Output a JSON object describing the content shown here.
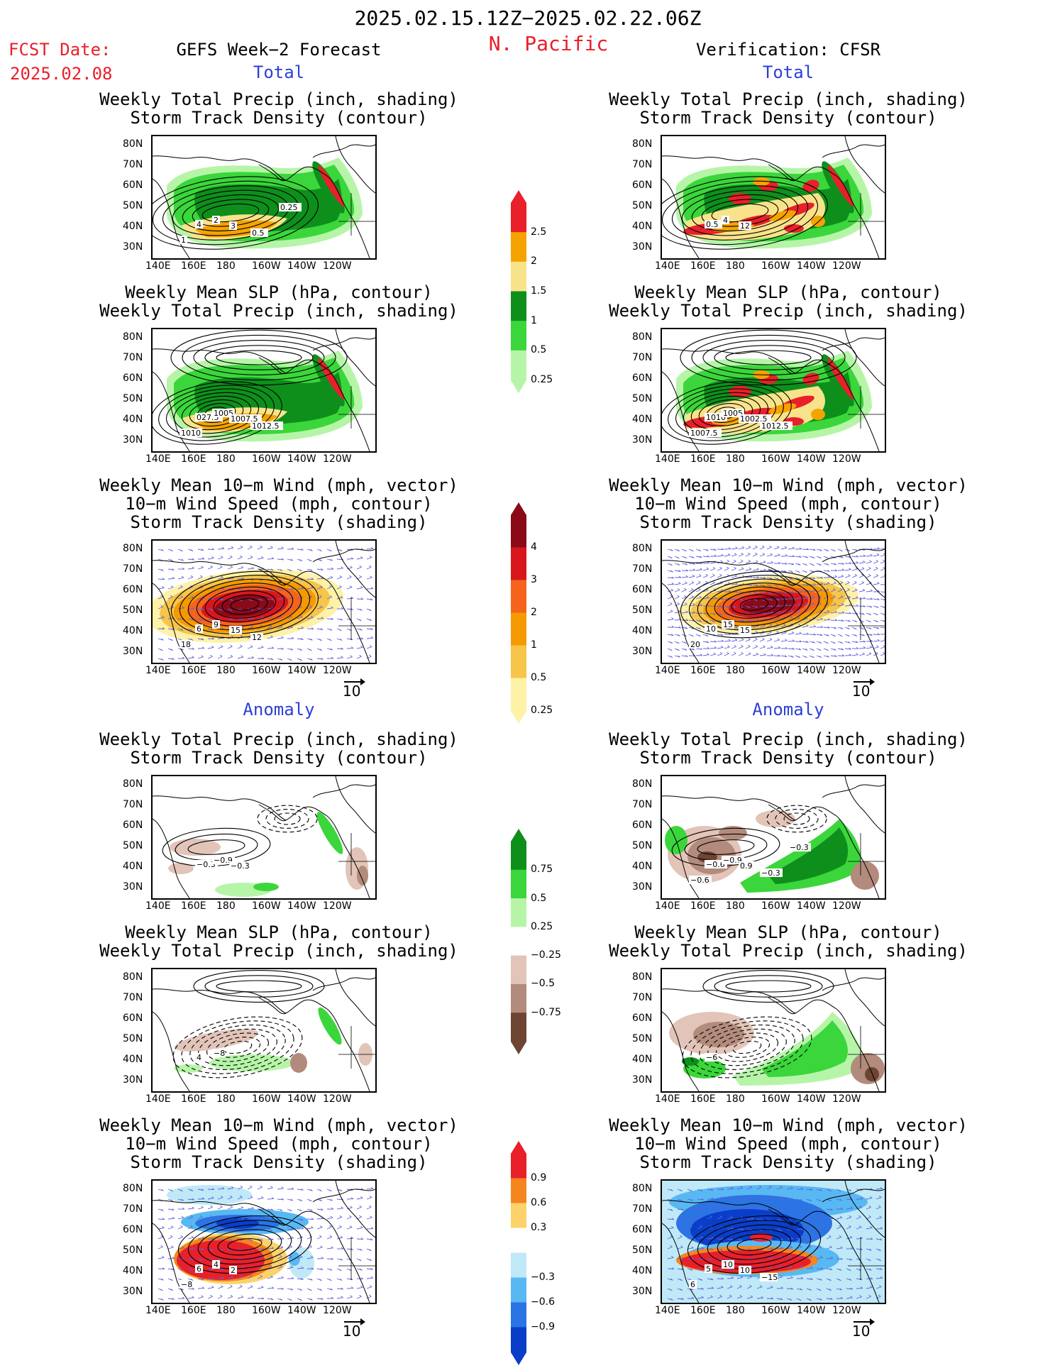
{
  "header": {
    "date_range": "2025.02.15.12Z−2025.02.22.06Z",
    "region": "N. Pacific",
    "fcst_label": "FCST Date:",
    "fcst_date": "2025.02.08",
    "left_title": "GEFS Week−2 Forecast",
    "right_title": "Verification: CFSR"
  },
  "sections": {
    "total": "Total",
    "anomaly": "Anomaly"
  },
  "panel_titles": {
    "precip_storm": [
      "Weekly Total Precip (inch, shading)",
      "Storm Track Density (contour)"
    ],
    "slp_precip": [
      "Weekly Mean SLP (hPa, contour)",
      "Weekly Total Precip (inch, shading)"
    ],
    "wind_storm": [
      "Weekly Mean 10−m Wind (mph, vector)",
      "10−m Wind Speed (mph, contour)",
      "Storm Track Density (shading)"
    ]
  },
  "axes": {
    "lat_ticks": [
      "80N",
      "70N",
      "60N",
      "50N",
      "40N",
      "30N"
    ],
    "lon_ticks": [
      "140E",
      "160E",
      "180",
      "160W",
      "140W",
      "120W"
    ]
  },
  "vector_ref": "10",
  "colorbars": {
    "precip_total": {
      "labels": [
        "2.5",
        "2",
        "1.5",
        "1",
        "0.5",
        "0.25"
      ],
      "colors": [
        "#e8202a",
        "#f5a300",
        "#f9e38a",
        "#0e8f1c",
        "#3bd63b",
        "#b6f5a8"
      ]
    },
    "storm_total": {
      "labels": [
        "4",
        "3",
        "2",
        "1",
        "0.5",
        "0.25"
      ],
      "colors": [
        "#8b0a18",
        "#d8171c",
        "#f4641d",
        "#f59a00",
        "#f6c54a",
        "#fdf2a6"
      ]
    },
    "precip_anom": {
      "labels": [
        "0.75",
        "0.5",
        "0.25",
        "−0.25",
        "−0.5",
        "−0.75"
      ],
      "colors": [
        "#0e8f1c",
        "#3bd63b",
        "#b6f5a8",
        "#ffffff",
        "#e2c4b8",
        "#b38b7c",
        "#6e4433"
      ]
    },
    "storm_anom": {
      "labels": [
        "0.9",
        "0.6",
        "0.3",
        "−0.3",
        "−0.6",
        "−0.9"
      ],
      "colors": [
        "#e8202a",
        "#f5851d",
        "#fbd36a",
        "#ffffff",
        "#bfe9f7",
        "#58b8f2",
        "#2a74e3",
        "#0a3ec8"
      ]
    }
  },
  "contour_labels": {
    "gefs_precip_total": [
      "4",
      "2",
      "3",
      "1",
      "0.5",
      "0.25"
    ],
    "cfsr_precip_total": [
      "0.5",
      "4",
      "12"
    ],
    "gefs_slp_total": [
      "027.5",
      "1005",
      "1007.5",
      "1010",
      "1012.5"
    ],
    "cfsr_slp_total": [
      "1010",
      "1005",
      "1002.5",
      "1007.5",
      "1012.5"
    ],
    "gefs_wind_total": [
      "6",
      "9",
      "15",
      "18",
      "12"
    ],
    "cfsr_wind_total": [
      "10",
      "15",
      "15",
      "20"
    ],
    "gefs_precip_anom": [
      "−0.3",
      "−0.9",
      "−0.3"
    ],
    "cfsr_precip_anom": [
      "−0.6",
      "−0.9",
      "0.9",
      "−0.6",
      "−0.3",
      "−0.3"
    ],
    "gefs_slp_anom": [
      "4",
      "−8"
    ],
    "cfsr_slp_anom": [
      "−6"
    ],
    "gefs_wind_anom": [
      "6",
      "4",
      "2",
      "−8"
    ],
    "cfsr_wind_anom": [
      "5",
      "10",
      "10",
      "6",
      "−15"
    ]
  },
  "chart_data": [
    {
      "type": "heatmap",
      "panel": "gefs-precip-storm-total",
      "x": [
        "140E",
        "160E",
        "180",
        "160W",
        "140W",
        "120W"
      ],
      "y": [
        "80N",
        "70N",
        "60N",
        "50N",
        "40N",
        "30N"
      ],
      "colorbar": "precip_total",
      "contours": "storm track density"
    },
    {
      "type": "heatmap",
      "panel": "cfsr-precip-storm-total",
      "x": [
        "140E",
        "160E",
        "180",
        "160W",
        "140W",
        "120W"
      ],
      "y": [
        "80N",
        "70N",
        "60N",
        "50N",
        "40N",
        "30N"
      ],
      "colorbar": "precip_total",
      "contours": "storm track density"
    },
    {
      "type": "heatmap",
      "panel": "gefs-slp-precip-total",
      "x": [
        "140E",
        "160E",
        "180",
        "160W",
        "140W",
        "120W"
      ],
      "y": [
        "80N",
        "70N",
        "60N",
        "50N",
        "40N",
        "30N"
      ],
      "colorbar": "precip_total",
      "contours": "mean SLP"
    },
    {
      "type": "heatmap",
      "panel": "cfsr-slp-precip-total",
      "x": [
        "140E",
        "160E",
        "180",
        "160W",
        "140W",
        "120W"
      ],
      "y": [
        "80N",
        "70N",
        "60N",
        "50N",
        "40N",
        "30N"
      ],
      "colorbar": "precip_total",
      "contours": "mean SLP"
    },
    {
      "type": "heatmap",
      "panel": "gefs-wind-storm-total",
      "x": [
        "140E",
        "160E",
        "180",
        "160W",
        "140W",
        "120W"
      ],
      "y": [
        "80N",
        "70N",
        "60N",
        "50N",
        "40N",
        "30N"
      ],
      "colorbar": "storm_total",
      "contours": "10-m wind speed"
    },
    {
      "type": "heatmap",
      "panel": "cfsr-wind-storm-total",
      "x": [
        "140E",
        "160E",
        "180",
        "160W",
        "140W",
        "120W"
      ],
      "y": [
        "80N",
        "70N",
        "60N",
        "50N",
        "40N",
        "30N"
      ],
      "colorbar": "storm_total",
      "contours": "10-m wind speed"
    },
    {
      "type": "heatmap",
      "panel": "gefs-precip-storm-anom",
      "x": [
        "140E",
        "160E",
        "180",
        "160W",
        "140W",
        "120W"
      ],
      "y": [
        "80N",
        "70N",
        "60N",
        "50N",
        "40N",
        "30N"
      ],
      "colorbar": "precip_anom",
      "contours": "storm track density"
    },
    {
      "type": "heatmap",
      "panel": "cfsr-precip-storm-anom",
      "x": [
        "140E",
        "160E",
        "180",
        "160W",
        "140W",
        "120W"
      ],
      "y": [
        "80N",
        "70N",
        "60N",
        "50N",
        "40N",
        "30N"
      ],
      "colorbar": "precip_anom",
      "contours": "storm track density"
    },
    {
      "type": "heatmap",
      "panel": "gefs-slp-precip-anom",
      "x": [
        "140E",
        "160E",
        "180",
        "160W",
        "140W",
        "120W"
      ],
      "y": [
        "80N",
        "70N",
        "60N",
        "50N",
        "40N",
        "30N"
      ],
      "colorbar": "precip_anom",
      "contours": "mean SLP"
    },
    {
      "type": "heatmap",
      "panel": "cfsr-slp-precip-anom",
      "x": [
        "140E",
        "160E",
        "180",
        "160W",
        "140W",
        "120W"
      ],
      "y": [
        "80N",
        "70N",
        "60N",
        "50N",
        "40N",
        "30N"
      ],
      "colorbar": "precip_anom",
      "contours": "mean SLP"
    },
    {
      "type": "heatmap",
      "panel": "gefs-wind-storm-anom",
      "x": [
        "140E",
        "160E",
        "180",
        "160W",
        "140W",
        "120W"
      ],
      "y": [
        "80N",
        "70N",
        "60N",
        "50N",
        "40N",
        "30N"
      ],
      "colorbar": "storm_anom",
      "contours": "10-m wind speed"
    },
    {
      "type": "heatmap",
      "panel": "cfsr-wind-storm-anom",
      "x": [
        "140E",
        "160E",
        "180",
        "160W",
        "140W",
        "120W"
      ],
      "y": [
        "80N",
        "70N",
        "60N",
        "50N",
        "40N",
        "30N"
      ],
      "colorbar": "storm_anom",
      "contours": "10-m wind speed"
    }
  ]
}
